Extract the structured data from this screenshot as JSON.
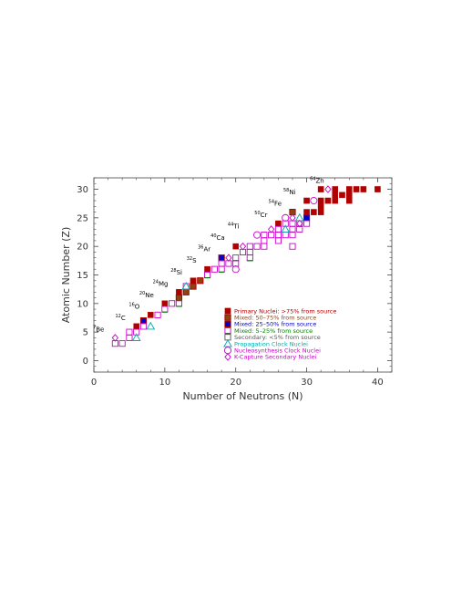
{
  "chart_data": {
    "type": "scatter",
    "xlabel": "Number of Neutrons (N)",
    "ylabel": "Atomic Number (Z)",
    "xlim": [
      0,
      42
    ],
    "ylim": [
      -2,
      32
    ],
    "x_ticks": [
      0,
      10,
      20,
      30,
      40
    ],
    "y_ticks": [
      0,
      5,
      10,
      15,
      20,
      25,
      30
    ],
    "legend_position": "lower-right",
    "legend": [
      {
        "key": "primary",
        "label": "Primary Nuclei: >75% from source",
        "color": "#b00000",
        "marker": "filled-square"
      },
      {
        "key": "mixed_high",
        "label": "Mixed: 50–75% from source",
        "color": "#8b4513",
        "marker": "filled-square-bicolor"
      },
      {
        "key": "mixed_mid",
        "label": "Mixed: 25–50% from source",
        "color": "#0000cc",
        "marker": "filled-square-bicolor"
      },
      {
        "key": "mixed_low",
        "label": "Mixed: 5–25% from source",
        "color": "#008000",
        "marker": "open-square-bicolor"
      },
      {
        "key": "secondary",
        "label": "Secondary: <5% from source",
        "color": "#555555",
        "marker": "open-square"
      },
      {
        "key": "clock",
        "label": "Propagation Clock Nuclei",
        "color": "#00aaaa",
        "marker": "open-triangle"
      },
      {
        "key": "nucleo",
        "label": "Nucleosynthesis Clock Nuclei",
        "color": "#cc00cc",
        "marker": "open-circle"
      },
      {
        "key": "kcapture",
        "label": "K-Capture Secondary Nuclei",
        "color": "#cc00cc",
        "marker": "open-diamond"
      }
    ],
    "nuclide_labels": [
      {
        "sup": "7",
        "sym": "Be",
        "n": 3,
        "z": 4
      },
      {
        "sup": "12",
        "sym": "C",
        "n": 6,
        "z": 6
      },
      {
        "sup": "16",
        "sym": "O",
        "n": 8,
        "z": 8
      },
      {
        "sup": "20",
        "sym": "Ne",
        "n": 10,
        "z": 10
      },
      {
        "sup": "24",
        "sym": "Mg",
        "n": 12,
        "z": 12
      },
      {
        "sup": "28",
        "sym": "Si",
        "n": 14,
        "z": 14
      },
      {
        "sup": "32",
        "sym": "S",
        "n": 16,
        "z": 16
      },
      {
        "sup": "36",
        "sym": "Ar",
        "n": 18,
        "z": 18
      },
      {
        "sup": "40",
        "sym": "Ca",
        "n": 20,
        "z": 20
      },
      {
        "sup": "44",
        "sym": "Ti",
        "n": 22,
        "z": 22
      },
      {
        "sup": "50",
        "sym": "Cr",
        "n": 26,
        "z": 24
      },
      {
        "sup": "54",
        "sym": "Fe",
        "n": 28,
        "z": 26
      },
      {
        "sup": "58",
        "sym": "Ni",
        "n": 30,
        "z": 28
      },
      {
        "sup": "64",
        "sym": "Zn",
        "n": 34,
        "z": 30
      }
    ],
    "series": [
      {
        "name": "Primary Nuclei: >75% from source",
        "marker": "filled-square",
        "color": "#b00000",
        "points": [
          [
            6,
            6
          ],
          [
            8,
            8
          ],
          [
            10,
            10
          ],
          [
            12,
            12
          ],
          [
            14,
            14
          ],
          [
            16,
            16
          ],
          [
            20,
            20
          ],
          [
            26,
            24
          ],
          [
            30,
            26
          ],
          [
            30,
            28
          ],
          [
            31,
            26
          ],
          [
            32,
            26
          ],
          [
            32,
            27
          ],
          [
            32,
            28
          ],
          [
            33,
            28
          ],
          [
            34,
            28
          ],
          [
            34,
            29
          ],
          [
            34,
            30
          ],
          [
            35,
            29
          ],
          [
            36,
            30
          ],
          [
            36,
            28
          ],
          [
            36,
            29
          ],
          [
            37,
            30
          ],
          [
            38,
            30
          ],
          [
            40,
            30
          ],
          [
            32,
            30
          ]
        ]
      },
      {
        "name": "Mixed: 50–75% from source",
        "marker": "filled-square",
        "color": "#8b4513",
        "edge": "#b00000",
        "points": [
          [
            13,
            12
          ],
          [
            14,
            13
          ],
          [
            15,
            14
          ],
          [
            28,
            26
          ],
          [
            12,
            11
          ]
        ]
      },
      {
        "name": "Mixed: 25–50% from source",
        "marker": "filled-square",
        "color": "#0000cc",
        "edge": "#b00000",
        "points": [
          [
            7,
            7
          ],
          [
            18,
            18
          ],
          [
            30,
            25
          ]
        ]
      },
      {
        "name": "Mixed: 5–25% from source",
        "marker": "open-square",
        "color": "#008000",
        "edge": "#cc00cc",
        "points": [
          [
            10,
            9
          ],
          [
            12,
            10
          ],
          [
            16,
            15
          ],
          [
            18,
            16
          ],
          [
            20,
            18
          ],
          [
            22,
            18
          ],
          [
            28,
            23
          ],
          [
            29,
            24
          ]
        ]
      },
      {
        "name": "Secondary: <5% from source",
        "marker": "open-square",
        "color": "#cc00cc",
        "points": [
          [
            3,
            3
          ],
          [
            4,
            3
          ],
          [
            5,
            4
          ],
          [
            5,
            5
          ],
          [
            6,
            5
          ],
          [
            7,
            6
          ],
          [
            9,
            8
          ],
          [
            11,
            10
          ],
          [
            13,
            13
          ],
          [
            17,
            16
          ],
          [
            19,
            17
          ],
          [
            21,
            19
          ],
          [
            22,
            20
          ],
          [
            23,
            20
          ],
          [
            24,
            20
          ],
          [
            24,
            21
          ],
          [
            24,
            22
          ],
          [
            25,
            22
          ],
          [
            26,
            21
          ],
          [
            26,
            22
          ],
          [
            26,
            23
          ],
          [
            27,
            22
          ],
          [
            27,
            24
          ],
          [
            28,
            20
          ],
          [
            28,
            22
          ],
          [
            28,
            24
          ],
          [
            29,
            23
          ],
          [
            30,
            24
          ],
          [
            18,
            17
          ],
          [
            20,
            17
          ],
          [
            22,
            19
          ]
        ]
      },
      {
        "name": "Propagation Clock Nuclei",
        "marker": "open-triangle",
        "color": "#00aaaa",
        "points": [
          [
            6,
            4
          ],
          [
            8,
            6
          ],
          [
            13,
            13
          ],
          [
            27,
            23
          ],
          [
            29,
            25
          ]
        ]
      },
      {
        "name": "Nucleosynthesis Clock Nuclei",
        "marker": "open-circle",
        "color": "#cc00cc",
        "points": [
          [
            20,
            16
          ],
          [
            23,
            22
          ],
          [
            27,
            25
          ],
          [
            31,
            28
          ]
        ]
      },
      {
        "name": "K-Capture Secondary Nuclei",
        "marker": "open-diamond",
        "color": "#cc00cc",
        "points": [
          [
            3,
            4
          ],
          [
            19,
            18
          ],
          [
            21,
            20
          ],
          [
            25,
            23
          ],
          [
            28,
            25
          ],
          [
            29,
            24
          ],
          [
            33,
            30
          ]
        ]
      }
    ]
  }
}
